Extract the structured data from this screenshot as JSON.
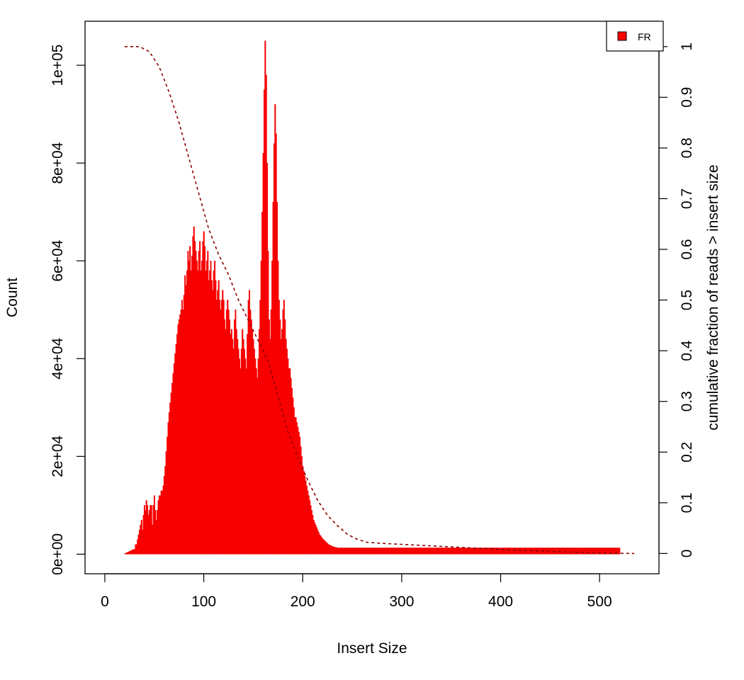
{
  "chart_data": {
    "type": "bar",
    "xlabel": "Insert Size",
    "ylabel": "Count",
    "y2label": "cumulative fraction of reads > insert size",
    "xlim": [
      -20,
      560
    ],
    "ylim": [
      -4000,
      109000
    ],
    "y2lim": [
      -0.04,
      1.05
    ],
    "x_ticks": [
      0,
      100,
      200,
      300,
      400,
      500
    ],
    "x_tick_labels": [
      "0",
      "100",
      "200",
      "300",
      "400",
      "500"
    ],
    "y_ticks": [
      0,
      20000,
      40000,
      60000,
      80000,
      100000
    ],
    "y_tick_labels": [
      "0e+00",
      "2e+04",
      "4e+04",
      "6e+04",
      "8e+04",
      "1e+05"
    ],
    "y2_ticks": [
      0,
      0.1,
      0.2,
      0.3,
      0.4,
      0.5,
      0.6,
      0.7,
      0.8,
      0.9,
      1
    ],
    "y2_tick_labels": [
      "0",
      "0.1",
      "0.2",
      "0.3",
      "0.4",
      "0.5",
      "0.6",
      "0.7",
      "0.8",
      "0.9",
      "1"
    ],
    "legend": {
      "position": "top-right",
      "entries": [
        {
          "label": "FR",
          "color": "#ff0000"
        }
      ]
    },
    "grid": false,
    "series": [
      {
        "name": "FR",
        "type": "bar",
        "color": "#ff0000",
        "x_start": 20,
        "x_step": 1,
        "values": [
          100,
          200,
          300,
          400,
          500,
          600,
          700,
          800,
          900,
          1000,
          1000,
          2000,
          2000,
          3000,
          4000,
          5000,
          6000,
          7000,
          5000,
          8000,
          10000,
          9000,
          11000,
          10000,
          8000,
          9000,
          10000,
          10000,
          6000,
          10000,
          12000,
          9000,
          7000,
          9000,
          11000,
          12000,
          12000,
          13000,
          13000,
          14000,
          16000,
          18000,
          21000,
          24000,
          27000,
          29000,
          31000,
          33000,
          35000,
          37000,
          39000,
          41000,
          43000,
          45000,
          47000,
          48000,
          49000,
          50000,
          52000,
          50000,
          53000,
          57000,
          55000,
          58000,
          62000,
          60000,
          63000,
          58000,
          61000,
          65000,
          67000,
          64000,
          62000,
          60000,
          58000,
          62000,
          64000,
          58000,
          60000,
          64000,
          66000,
          63000,
          58000,
          60000,
          62000,
          56000,
          58000,
          60000,
          56000,
          54000,
          58000,
          60000,
          56000,
          52000,
          54000,
          56000,
          52000,
          50000,
          52000,
          54000,
          52000,
          48000,
          46000,
          50000,
          52000,
          50000,
          48000,
          45000,
          46000,
          44000,
          42000,
          48000,
          50000,
          46000,
          44000,
          42000,
          40000,
          38000,
          42000,
          46000,
          44000,
          42000,
          40000,
          38000,
          45000,
          52000,
          54000,
          50000,
          48000,
          46000,
          44000,
          42000,
          40000,
          38000,
          36000,
          40000,
          46000,
          52000,
          60000,
          70000,
          82000,
          95000,
          105000,
          98000,
          80000,
          62000,
          48000,
          44000,
          50000,
          60000,
          72000,
          84000,
          92000,
          86000,
          72000,
          60000,
          52000,
          48000,
          44000,
          46000,
          50000,
          52000,
          48000,
          44000,
          42000,
          40000,
          38000,
          38000,
          36000,
          34000,
          32000,
          30000,
          28000,
          28000,
          27000,
          26000,
          25000,
          24000,
          22000,
          20000,
          18000,
          17000,
          16000,
          15000,
          14000,
          13000,
          12000,
          11000,
          10000,
          9000,
          8000,
          7000,
          6500,
          6000,
          5500,
          5000,
          4500,
          4000,
          3800,
          3500,
          3200,
          3000,
          2800,
          2600,
          2400,
          2200,
          2000,
          1900,
          1800,
          1700,
          1600,
          1500,
          1500,
          1400,
          1400,
          1300,
          1300,
          1300,
          1300,
          1300,
          1300,
          1300,
          1300,
          1300,
          1300,
          1300,
          1300,
          1300,
          1300,
          1300,
          1300,
          1300,
          1300,
          1300,
          1300,
          1300,
          1300,
          1300,
          1300,
          1300,
          1300,
          1300,
          1300,
          1300,
          1300,
          1300,
          1300,
          1300,
          1300,
          1300,
          1300,
          1300,
          1300,
          1300,
          1300,
          1300,
          1300,
          1300,
          1300,
          1300,
          1300,
          1300,
          1300,
          1300,
          1300,
          1300,
          1300,
          1300,
          1300,
          1300,
          1300,
          1300,
          1300,
          1300,
          1300,
          1300,
          1300,
          1300,
          1300,
          1300,
          1300,
          1300,
          1300,
          1300,
          1300,
          1300,
          1300,
          1300,
          1300,
          1300,
          1300,
          1300,
          1300,
          1300,
          1300,
          1300,
          1300,
          1300,
          1300,
          1300,
          1300,
          1300,
          1300,
          1300,
          1300,
          1300,
          1300,
          1300,
          1300,
          1300,
          1300,
          1300,
          1300,
          1300,
          1300,
          1300,
          1300,
          1300,
          1300,
          1300,
          1300,
          1300,
          1300,
          1300,
          1300,
          1300,
          1300,
          1300,
          1300,
          1300,
          1300,
          1300,
          1300,
          1300,
          1300,
          1300,
          1300,
          1300,
          1300,
          1300,
          1300,
          1300,
          1300,
          1300,
          1300,
          1300,
          1300,
          1300,
          1300,
          1300,
          1300,
          1300,
          1300,
          1300,
          1300,
          1300,
          1300,
          1300,
          1300,
          1300,
          1300,
          1300,
          1300,
          1300,
          1300,
          1300,
          1300,
          1300,
          1300,
          1300,
          1300,
          1300,
          1300,
          1300,
          1300,
          1300,
          1300,
          1300,
          1300,
          1300,
          1300,
          1300,
          1300,
          1300,
          1300,
          1300,
          1300,
          1300,
          1300,
          1300,
          1300,
          1300,
          1300,
          1300,
          1300,
          1300,
          1300,
          1300,
          1300,
          1300,
          1300,
          1300,
          1300,
          1300,
          1300,
          1300,
          1300,
          1300,
          1300,
          1300,
          1300,
          1300,
          1300,
          1300,
          1300,
          1300,
          1300,
          1300,
          1300,
          1300,
          1300,
          1300,
          1300,
          1300,
          1300,
          1300,
          1300,
          1300,
          1300,
          1300,
          1300,
          1300,
          1300,
          1300,
          1300,
          1300,
          1300,
          1300,
          1300,
          1300,
          1300,
          1300,
          1300,
          1300,
          1300,
          1300,
          1300,
          1300,
          1300,
          1300,
          1300,
          1300,
          1300,
          1300,
          1300,
          1300,
          1300,
          1300,
          1300,
          1300,
          1300,
          1300,
          1300,
          1300,
          1300,
          1300,
          1300,
          1300,
          1300,
          1300,
          1300,
          1300,
          1300,
          1300,
          1300,
          1300,
          1300,
          1300,
          1300,
          1300,
          1300,
          1300,
          1300,
          1300,
          1300,
          1300,
          1300,
          1300,
          1300,
          1300,
          1300,
          1300,
          1300,
          1300,
          1300,
          1300,
          1300,
          1300,
          1300,
          1300,
          1300
        ]
      },
      {
        "name": "cumulative",
        "type": "line",
        "axis": "right",
        "color": "#8b0000",
        "dash": "dashed",
        "points": [
          [
            20,
            1.0
          ],
          [
            35,
            1.0
          ],
          [
            45,
            0.99
          ],
          [
            55,
            0.96
          ],
          [
            65,
            0.91
          ],
          [
            75,
            0.85
          ],
          [
            85,
            0.78
          ],
          [
            95,
            0.71
          ],
          [
            105,
            0.64
          ],
          [
            115,
            0.59
          ],
          [
            125,
            0.55
          ],
          [
            135,
            0.5
          ],
          [
            145,
            0.46
          ],
          [
            155,
            0.42
          ],
          [
            165,
            0.38
          ],
          [
            175,
            0.31
          ],
          [
            185,
            0.24
          ],
          [
            195,
            0.19
          ],
          [
            205,
            0.145
          ],
          [
            215,
            0.105
          ],
          [
            225,
            0.075
          ],
          [
            235,
            0.055
          ],
          [
            245,
            0.038
          ],
          [
            255,
            0.028
          ],
          [
            265,
            0.022
          ],
          [
            280,
            0.02
          ],
          [
            300,
            0.018
          ],
          [
            350,
            0.013
          ],
          [
            400,
            0.008
          ],
          [
            450,
            0.004
          ],
          [
            500,
            0.001
          ],
          [
            535,
            0.0
          ]
        ]
      }
    ]
  }
}
